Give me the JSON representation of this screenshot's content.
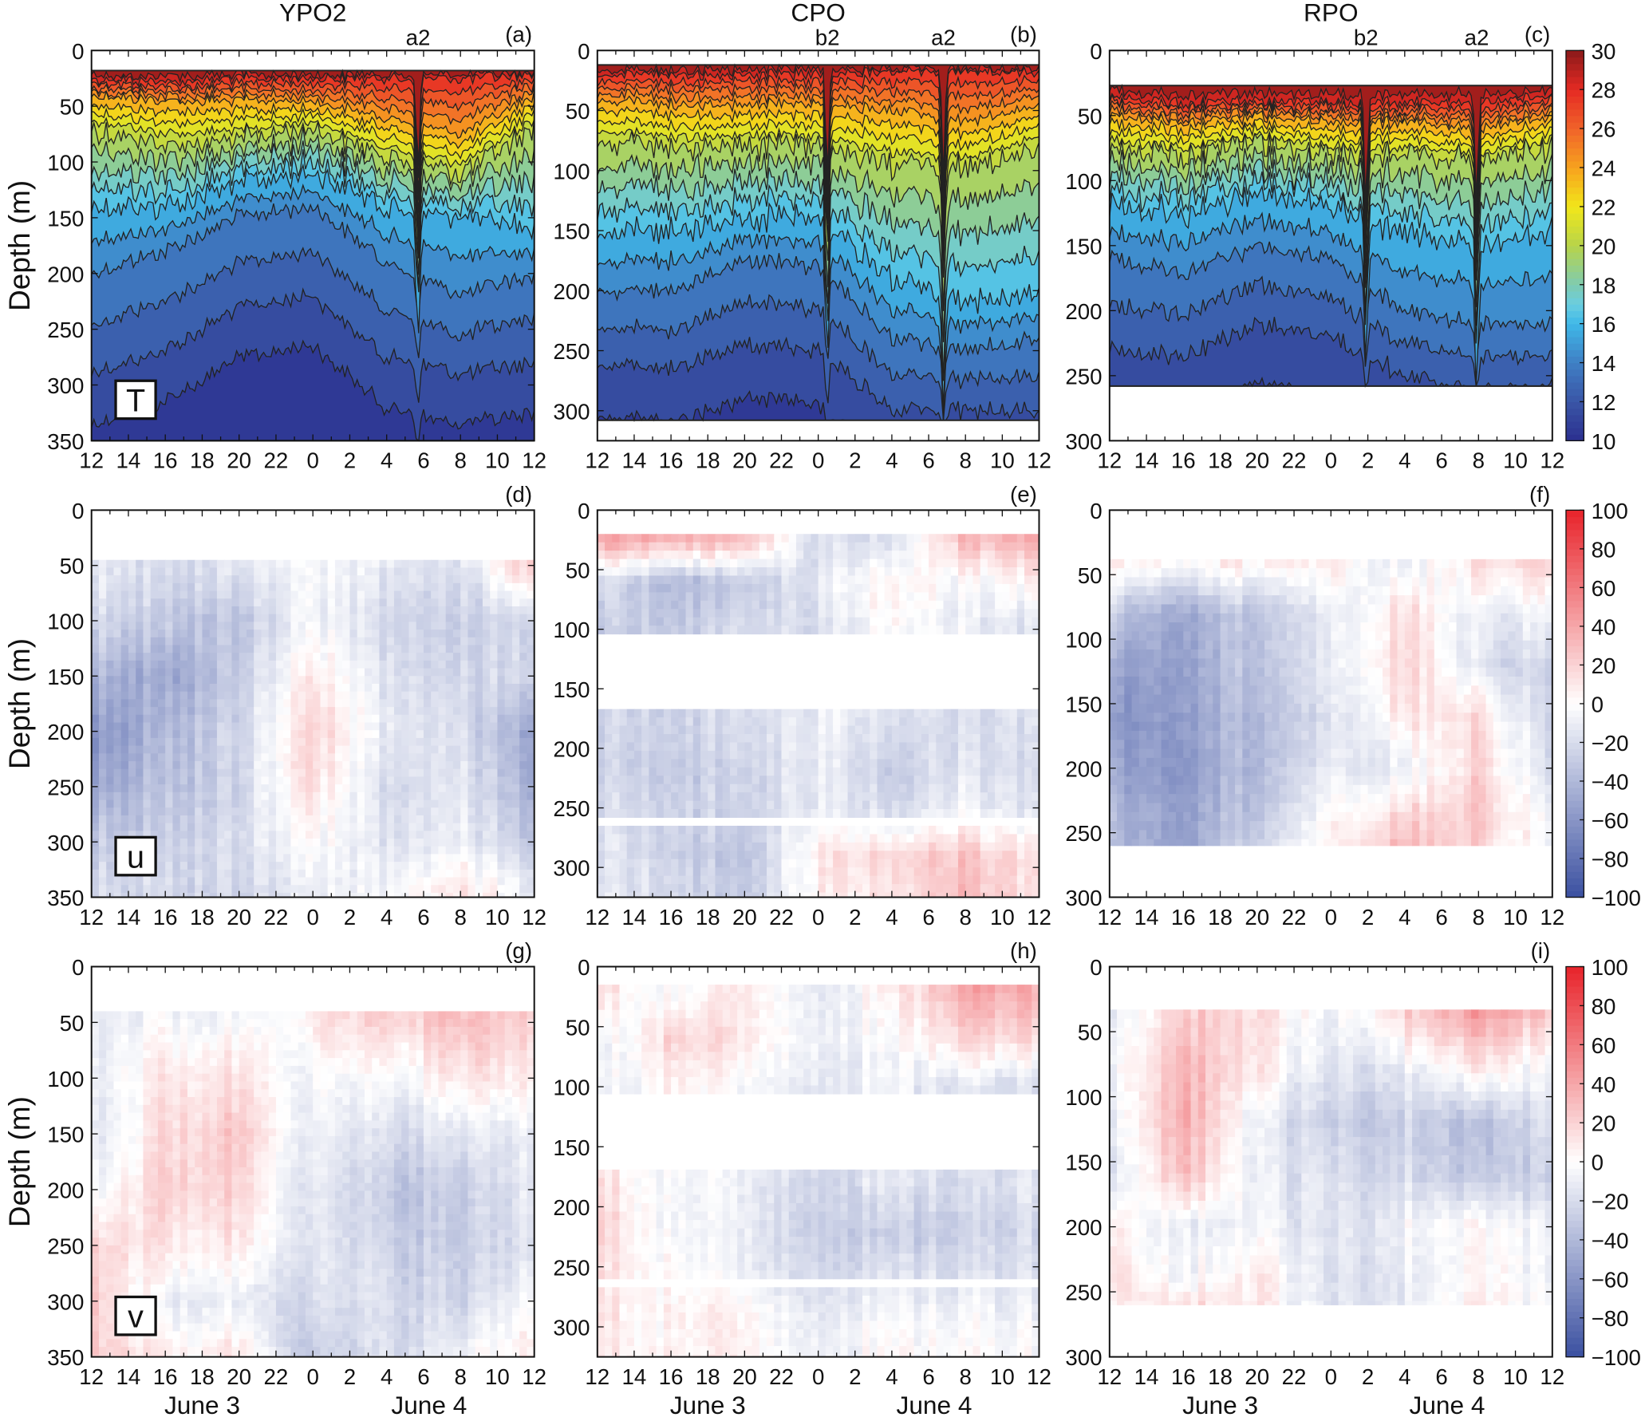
{
  "chart_data": [
    {
      "panel": "a",
      "type": "heatmap",
      "variable": "T",
      "title": "YPO2",
      "label": "(a)",
      "annotations": [
        {
          "text": "a2",
          "x_hour_offset": 17.7
        }
      ],
      "ylabel": "Depth (m)",
      "yticks": [
        0,
        50,
        100,
        150,
        200,
        250,
        300,
        350
      ],
      "ylim": [
        0,
        350
      ],
      "data_top": 18,
      "data_bottom": 350,
      "xticks": [
        "12",
        "14",
        "16",
        "18",
        "20",
        "22",
        "0",
        "2",
        "4",
        "6",
        "8",
        "10",
        "12"
      ],
      "var_box": "T",
      "times": [
        0,
        4,
        8,
        12,
        16,
        20,
        24
      ],
      "isotherm_levels": [
        28,
        24,
        20,
        16,
        14,
        12
      ],
      "isotherm_depths": [
        [
          25,
          28,
          25,
          25,
          25,
          25,
          22
        ],
        [
          40,
          45,
          45,
          45,
          60,
          75,
          40
        ],
        [
          70,
          85,
          80,
          70,
          95,
          110,
          70
        ],
        [
          140,
          140,
          120,
          110,
          140,
          150,
          160
        ],
        [
          200,
          180,
          150,
          140,
          190,
          220,
          200
        ],
        [
          290,
          270,
          230,
          220,
          275,
          290,
          280
        ]
      ]
    },
    {
      "panel": "b",
      "type": "heatmap",
      "variable": "T",
      "title": "CPO",
      "label": "(b)",
      "annotations": [
        {
          "text": "b2",
          "x_hour_offset": 12.5
        },
        {
          "text": "a2",
          "x_hour_offset": 18.8
        }
      ],
      "yticks": [
        0,
        50,
        100,
        150,
        200,
        250,
        300
      ],
      "ylim": [
        0,
        325
      ],
      "data_top": 12,
      "data_bottom": 308,
      "xticks": [
        "12",
        "14",
        "16",
        "18",
        "20",
        "22",
        "0",
        "2",
        "4",
        "6",
        "8",
        "10",
        "12"
      ],
      "times": [
        0,
        4,
        8,
        12,
        16,
        20,
        24
      ],
      "isotherm_levels": [
        28,
        24,
        20,
        16,
        14,
        12
      ],
      "isotherm_depths": [
        [
          20,
          20,
          20,
          20,
          18,
          18,
          18
        ],
        [
          40,
          45,
          45,
          45,
          50,
          60,
          45
        ],
        [
          75,
          80,
          80,
          80,
          95,
          100,
          80
        ],
        [
          150,
          150,
          140,
          140,
          190,
          210,
          200
        ],
        [
          200,
          200,
          175,
          180,
          240,
          250,
          240
        ],
        [
          260,
          265,
          245,
          250,
          300,
          300,
          300
        ]
      ]
    },
    {
      "panel": "c",
      "type": "heatmap",
      "variable": "T",
      "title": "RPO",
      "label": "(c)",
      "annotations": [
        {
          "text": "b2",
          "x_hour_offset": 13.9
        },
        {
          "text": "a2",
          "x_hour_offset": 19.9
        }
      ],
      "yticks": [
        0,
        50,
        100,
        150,
        200,
        250,
        300
      ],
      "ylim": [
        0,
        300
      ],
      "data_top": 27,
      "data_bottom": 258,
      "xticks": [
        "12",
        "14",
        "16",
        "18",
        "20",
        "22",
        "0",
        "2",
        "4",
        "6",
        "8",
        "10",
        "12"
      ],
      "times": [
        0,
        4,
        8,
        12,
        16,
        20,
        24
      ],
      "isotherm_levels": [
        28,
        24,
        20,
        16,
        14,
        12
      ],
      "isotherm_depths": [
        [
          35,
          40,
          38,
          40,
          40,
          40,
          35
        ],
        [
          50,
          55,
          50,
          55,
          55,
          60,
          50
        ],
        [
          75,
          80,
          70,
          80,
          80,
          85,
          75
        ],
        [
          120,
          125,
          110,
          120,
          140,
          150,
          140
        ],
        [
          160,
          170,
          150,
          160,
          200,
          210,
          210
        ],
        [
          230,
          235,
          210,
          220,
          250,
          260,
          260
        ]
      ],
      "colorbar": {
        "ticks": [
          "10",
          "12",
          "14",
          "16",
          "18",
          "20",
          "22",
          "24",
          "26",
          "28",
          "30"
        ],
        "range": [
          10,
          30
        ]
      }
    },
    {
      "panel": "d",
      "type": "heatmap",
      "variable": "u",
      "label": "(d)",
      "ylabel": "Depth (m)",
      "yticks": [
        0,
        50,
        100,
        150,
        200,
        250,
        300,
        350
      ],
      "ylim": [
        0,
        350
      ],
      "data_top": 45,
      "data_bottom": 350,
      "gaps": [],
      "xticks": [
        "12",
        "14",
        "16",
        "18",
        "20",
        "22",
        "0",
        "2",
        "4",
        "6",
        "8",
        "10",
        "12"
      ],
      "var_box": "u",
      "times": [
        0,
        4,
        8,
        12,
        16,
        20,
        24
      ],
      "depths": [
        50,
        100,
        150,
        200,
        250,
        300,
        340
      ],
      "values": [
        [
          -10,
          -20,
          -15,
          -5,
          -10,
          -20,
          30
        ],
        [
          -20,
          -30,
          -35,
          -5,
          -20,
          -30,
          -20
        ],
        [
          -40,
          -50,
          -30,
          10,
          -15,
          -25,
          -20
        ],
        [
          -60,
          -40,
          -25,
          20,
          -10,
          -20,
          -50
        ],
        [
          -50,
          -35,
          -25,
          15,
          -20,
          -15,
          -45
        ],
        [
          -30,
          -25,
          -20,
          0,
          -15,
          -10,
          -30
        ],
        [
          -20,
          -20,
          -25,
          -10,
          -5,
          10,
          -10
        ]
      ]
    },
    {
      "panel": "e",
      "type": "heatmap",
      "variable": "u",
      "label": "(e)",
      "yticks": [
        0,
        50,
        100,
        150,
        200,
        250,
        300
      ],
      "ylim": [
        0,
        325
      ],
      "data_top": 20,
      "data_bottom": 325,
      "gaps": [
        [
          105,
          170
        ],
        [
          257,
          268
        ]
      ],
      "xticks": [
        "12",
        "14",
        "16",
        "18",
        "20",
        "22",
        "0",
        "2",
        "4",
        "6",
        "8",
        "10",
        "12"
      ],
      "times": [
        0,
        4,
        8,
        12,
        16,
        20,
        24
      ],
      "depths": [
        25,
        60,
        100,
        180,
        220,
        250,
        290,
        320
      ],
      "values": [
        [
          40,
          35,
          30,
          -20,
          -15,
          30,
          35
        ],
        [
          -20,
          -40,
          -30,
          -15,
          10,
          -5,
          5
        ],
        [
          -30,
          -30,
          -20,
          -20,
          5,
          -10,
          -20
        ],
        [
          -25,
          -25,
          -20,
          -10,
          -15,
          -20,
          -20
        ],
        [
          -25,
          -30,
          -25,
          -10,
          -25,
          -15,
          -25
        ],
        [
          -20,
          -25,
          -25,
          -10,
          -20,
          -5,
          -20
        ],
        [
          -15,
          -25,
          -35,
          10,
          20,
          25,
          10
        ],
        [
          -15,
          -20,
          -30,
          5,
          15,
          30,
          10
        ]
      ]
    },
    {
      "panel": "f",
      "type": "heatmap",
      "variable": "u",
      "label": "(f)",
      "yticks": [
        0,
        50,
        100,
        150,
        200,
        250,
        300
      ],
      "ylim": [
        0,
        300
      ],
      "data_top": 38,
      "data_bottom": 260,
      "gaps": [],
      "xticks": [
        "12",
        "14",
        "16",
        "18",
        "20",
        "22",
        "0",
        "2",
        "4",
        "6",
        "8",
        "10",
        "12"
      ],
      "times": [
        0,
        4,
        8,
        12,
        16,
        20,
        24
      ],
      "depths": [
        40,
        80,
        120,
        160,
        200,
        240,
        258
      ],
      "values": [
        [
          10,
          5,
          10,
          5,
          -10,
          15,
          20
        ],
        [
          -30,
          -45,
          -30,
          -15,
          15,
          -10,
          -10
        ],
        [
          -50,
          -50,
          -30,
          -15,
          20,
          -15,
          -30
        ],
        [
          -60,
          -50,
          -35,
          -20,
          10,
          15,
          -30
        ],
        [
          -50,
          -55,
          -35,
          -15,
          -10,
          20,
          -25
        ],
        [
          -40,
          -50,
          -30,
          0,
          20,
          25,
          -10
        ],
        [
          -40,
          -50,
          -20,
          0,
          30,
          20,
          -10
        ]
      ],
      "colorbar": {
        "ticks": [
          "100",
          "80",
          "60",
          "40",
          "20",
          "0",
          "−20",
          "−40",
          "−60",
          "−80",
          "−100"
        ],
        "range": [
          -100,
          100
        ]
      }
    },
    {
      "panel": "g",
      "type": "heatmap",
      "variable": "v",
      "label": "(g)",
      "ylabel": "Depth (m)",
      "yticks": [
        0,
        50,
        100,
        150,
        200,
        250,
        300,
        350
      ],
      "ylim": [
        0,
        350
      ],
      "data_top": 40,
      "data_bottom": 350,
      "gaps": [],
      "xticks": [
        "12",
        "14",
        "16",
        "18",
        "20",
        "22",
        "0",
        "2",
        "4",
        "6",
        "8",
        "10",
        "12"
      ],
      "var_box": "v",
      "dates": [
        "June 3",
        "June 4"
      ],
      "times": [
        0,
        4,
        8,
        12,
        16,
        20,
        24
      ],
      "depths": [
        45,
        100,
        150,
        200,
        250,
        300,
        345
      ],
      "values": [
        [
          -10,
          -5,
          -5,
          10,
          20,
          30,
          20
        ],
        [
          -10,
          10,
          15,
          -5,
          -5,
          10,
          10
        ],
        [
          -15,
          15,
          25,
          -10,
          -20,
          -15,
          -10
        ],
        [
          -5,
          20,
          20,
          -15,
          -30,
          -30,
          -10
        ],
        [
          20,
          10,
          10,
          -15,
          -25,
          -30,
          -15
        ],
        [
          25,
          -10,
          -10,
          -20,
          -20,
          -25,
          0
        ],
        [
          25,
          5,
          10,
          -30,
          -20,
          -10,
          10
        ]
      ]
    },
    {
      "panel": "h",
      "type": "heatmap",
      "variable": "v",
      "label": "(h)",
      "yticks": [
        0,
        50,
        100,
        150,
        200,
        250,
        300
      ],
      "ylim": [
        0,
        325
      ],
      "data_top": 15,
      "data_bottom": 325,
      "gaps": [
        [
          105,
          170
        ],
        [
          257,
          268
        ]
      ],
      "xticks": [
        "12",
        "14",
        "16",
        "18",
        "20",
        "22",
        "0",
        "2",
        "4",
        "6",
        "8",
        "10",
        "12"
      ],
      "dates": [
        "June 3",
        "June 4"
      ],
      "times": [
        0,
        4,
        8,
        12,
        16,
        20,
        24
      ],
      "depths": [
        20,
        60,
        100,
        180,
        220,
        250,
        290,
        320
      ],
      "values": [
        [
          15,
          -5,
          10,
          -10,
          5,
          40,
          40
        ],
        [
          -10,
          20,
          10,
          -5,
          -5,
          20,
          20
        ],
        [
          -10,
          5,
          -5,
          -10,
          -10,
          -15,
          -20
        ],
        [
          15,
          -5,
          -10,
          -20,
          -15,
          -20,
          -10
        ],
        [
          20,
          -5,
          -10,
          -25,
          -30,
          -25,
          -20
        ],
        [
          15,
          0,
          -10,
          -20,
          -20,
          -20,
          -15
        ],
        [
          10,
          5,
          5,
          -10,
          -5,
          -5,
          -5
        ],
        [
          10,
          5,
          5,
          -5,
          0,
          0,
          0
        ]
      ]
    },
    {
      "panel": "i",
      "type": "heatmap",
      "variable": "v",
      "label": "(i)",
      "yticks": [
        0,
        50,
        100,
        150,
        200,
        250,
        300
      ],
      "ylim": [
        0,
        300
      ],
      "data_top": 33,
      "data_bottom": 260,
      "gaps": [],
      "xticks": [
        "12",
        "14",
        "16",
        "18",
        "20",
        "22",
        "0",
        "2",
        "4",
        "6",
        "8",
        "10",
        "12"
      ],
      "dates": [
        "June 3",
        "June 4"
      ],
      "times": [
        0,
        4,
        8,
        12,
        16,
        20,
        24
      ],
      "depths": [
        35,
        80,
        120,
        160,
        200,
        240,
        258
      ],
      "values": [
        [
          -10,
          25,
          15,
          -10,
          20,
          50,
          20
        ],
        [
          -5,
          35,
          10,
          -20,
          -10,
          10,
          -10
        ],
        [
          -10,
          40,
          -10,
          -30,
          -25,
          -35,
          -20
        ],
        [
          -15,
          30,
          -10,
          -20,
          -20,
          -30,
          -30
        ],
        [
          10,
          -10,
          -5,
          -20,
          -5,
          5,
          -10
        ],
        [
          20,
          -5,
          10,
          -20,
          -10,
          5,
          -10
        ],
        [
          10,
          15,
          10,
          -20,
          -10,
          10,
          -10
        ]
      ],
      "colorbar": {
        "ticks": [
          "100",
          "80",
          "60",
          "40",
          "20",
          "0",
          "−20",
          "−40",
          "−60",
          "−80",
          "−100"
        ],
        "range": [
          -100,
          100
        ]
      }
    }
  ]
}
